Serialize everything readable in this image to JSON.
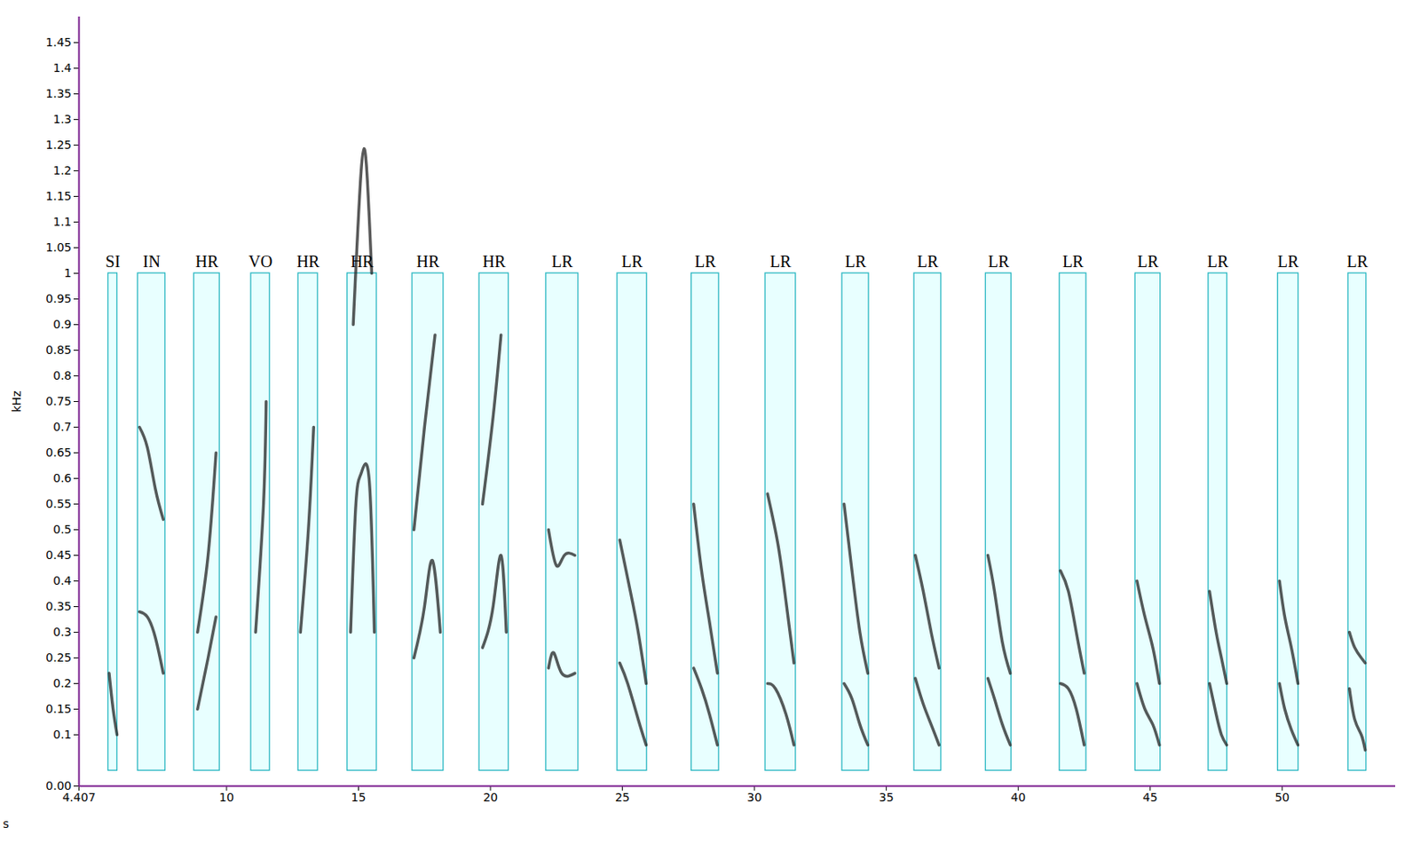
{
  "chart_data": {
    "type": "spectrogram",
    "x_label": "s",
    "y_label": "kHz",
    "xlim": [
      4.407,
      54.3
    ],
    "ylim": [
      0,
      1.5
    ],
    "xticks": [
      4.407,
      10,
      15,
      20,
      25,
      30,
      35,
      40,
      45,
      50
    ],
    "yticks": [
      {
        "value": 0,
        "label": "0.00"
      },
      0.1,
      0.15,
      0.2,
      0.25,
      0.3,
      0.35,
      0.4,
      0.45,
      0.5,
      0.55,
      0.6,
      0.65,
      0.7,
      0.75,
      0.8,
      0.85,
      0.9,
      0.95,
      1,
      1.05,
      1.1,
      1.15,
      1.2,
      1.25,
      1.3,
      1.35,
      1.4,
      1.45
    ],
    "annotations": [
      {
        "label": "SI",
        "t_start": 5.52,
        "t_end": 5.86,
        "f_low": 0.03,
        "f_high": 1.0,
        "contours": [
          [
            [
              5.55,
              0.22
            ],
            [
              5.7,
              0.15
            ],
            [
              5.85,
              0.1
            ]
          ]
        ]
      },
      {
        "label": "IN",
        "t_start": 6.64,
        "t_end": 7.68,
        "f_low": 0.03,
        "f_high": 1.0,
        "contours": [
          [
            [
              6.7,
              0.34
            ],
            [
              7.0,
              0.33
            ],
            [
              7.3,
              0.29
            ],
            [
              7.6,
              0.22
            ]
          ],
          [
            [
              6.7,
              0.7
            ],
            [
              7.0,
              0.66
            ],
            [
              7.3,
              0.58
            ],
            [
              7.6,
              0.52
            ]
          ]
        ]
      },
      {
        "label": "HR",
        "t_start": 8.77,
        "t_end": 9.74,
        "f_low": 0.03,
        "f_high": 1.0,
        "contours": [
          [
            [
              8.9,
              0.15
            ],
            [
              9.3,
              0.25
            ],
            [
              9.6,
              0.33
            ]
          ],
          [
            [
              8.9,
              0.3
            ],
            [
              9.3,
              0.45
            ],
            [
              9.6,
              0.65
            ]
          ]
        ]
      },
      {
        "label": "VO",
        "t_start": 10.93,
        "t_end": 11.64,
        "f_low": 0.03,
        "f_high": 1.0,
        "contours": [
          [
            [
              11.1,
              0.3
            ],
            [
              11.4,
              0.55
            ],
            [
              11.5,
              0.75
            ]
          ]
        ]
      },
      {
        "label": "HR",
        "t_start": 12.72,
        "t_end": 13.46,
        "f_low": 0.03,
        "f_high": 1.0,
        "contours": [
          [
            [
              12.8,
              0.3
            ],
            [
              13.1,
              0.5
            ],
            [
              13.3,
              0.7
            ]
          ]
        ]
      },
      {
        "label": "HR",
        "t_start": 14.58,
        "t_end": 15.69,
        "f_low": 0.03,
        "f_high": 1.0,
        "contours": [
          [
            [
              14.7,
              0.3
            ],
            [
              14.9,
              0.55
            ],
            [
              15.1,
              0.61
            ],
            [
              15.4,
              0.6
            ],
            [
              15.6,
              0.3
            ]
          ],
          [
            [
              14.8,
              0.9
            ],
            [
              15.1,
              1.2
            ],
            [
              15.3,
              1.21
            ],
            [
              15.5,
              1.0
            ]
          ]
        ]
      },
      {
        "label": "HR",
        "t_start": 17.04,
        "t_end": 18.22,
        "f_low": 0.03,
        "f_high": 1.0,
        "contours": [
          [
            [
              17.1,
              0.25
            ],
            [
              17.5,
              0.35
            ],
            [
              17.8,
              0.44
            ],
            [
              18.1,
              0.3
            ]
          ],
          [
            [
              17.1,
              0.5
            ],
            [
              17.5,
              0.7
            ],
            [
              17.9,
              0.88
            ]
          ]
        ]
      },
      {
        "label": "HR",
        "t_start": 19.58,
        "t_end": 20.69,
        "f_low": 0.03,
        "f_high": 1.0,
        "contours": [
          [
            [
              19.7,
              0.27
            ],
            [
              20.1,
              0.35
            ],
            [
              20.4,
              0.45
            ],
            [
              20.6,
              0.3
            ]
          ],
          [
            [
              19.7,
              0.55
            ],
            [
              20.1,
              0.72
            ],
            [
              20.4,
              0.88
            ]
          ]
        ]
      },
      {
        "label": "LR",
        "t_start": 22.11,
        "t_end": 23.33,
        "f_low": 0.03,
        "f_high": 1.0,
        "contours": [
          [
            [
              22.2,
              0.23
            ],
            [
              22.4,
              0.26
            ],
            [
              22.7,
              0.22
            ],
            [
              23.2,
              0.22
            ]
          ],
          [
            [
              22.2,
              0.5
            ],
            [
              22.5,
              0.43
            ],
            [
              22.8,
              0.45
            ],
            [
              23.2,
              0.45
            ]
          ]
        ]
      },
      {
        "label": "LR",
        "t_start": 24.81,
        "t_end": 25.93,
        "f_low": 0.03,
        "f_high": 1.0,
        "contours": [
          [
            [
              24.9,
              0.24
            ],
            [
              25.2,
              0.2
            ],
            [
              25.6,
              0.13
            ],
            [
              25.9,
              0.08
            ]
          ],
          [
            [
              24.9,
              0.48
            ],
            [
              25.3,
              0.38
            ],
            [
              25.6,
              0.3
            ],
            [
              25.9,
              0.2
            ]
          ]
        ]
      },
      {
        "label": "LR",
        "t_start": 27.62,
        "t_end": 28.66,
        "f_low": 0.03,
        "f_high": 1.0,
        "contours": [
          [
            [
              27.7,
              0.23
            ],
            [
              28.0,
              0.19
            ],
            [
              28.3,
              0.14
            ],
            [
              28.6,
              0.08
            ]
          ],
          [
            [
              27.7,
              0.55
            ],
            [
              28.0,
              0.42
            ],
            [
              28.3,
              0.32
            ],
            [
              28.6,
              0.22
            ]
          ]
        ]
      },
      {
        "label": "LR",
        "t_start": 30.42,
        "t_end": 31.57,
        "f_low": 0.03,
        "f_high": 1.0,
        "contours": [
          [
            [
              30.5,
              0.2
            ],
            [
              30.8,
              0.19
            ],
            [
              31.2,
              0.14
            ],
            [
              31.5,
              0.08
            ]
          ],
          [
            [
              30.5,
              0.57
            ],
            [
              30.9,
              0.47
            ],
            [
              31.2,
              0.36
            ],
            [
              31.5,
              0.24
            ]
          ]
        ]
      },
      {
        "label": "LR",
        "t_start": 33.33,
        "t_end": 34.34,
        "f_low": 0.03,
        "f_high": 1.0,
        "contours": [
          [
            [
              33.4,
              0.2
            ],
            [
              33.7,
              0.17
            ],
            [
              34.0,
              0.12
            ],
            [
              34.3,
              0.08
            ]
          ],
          [
            [
              33.4,
              0.55
            ],
            [
              33.7,
              0.42
            ],
            [
              34.0,
              0.3
            ],
            [
              34.3,
              0.22
            ]
          ]
        ]
      },
      {
        "label": "LR",
        "t_start": 36.06,
        "t_end": 37.08,
        "f_low": 0.03,
        "f_high": 1.0,
        "contours": [
          [
            [
              36.1,
              0.21
            ],
            [
              36.4,
              0.16
            ],
            [
              36.7,
              0.12
            ],
            [
              37.0,
              0.08
            ]
          ],
          [
            [
              36.1,
              0.45
            ],
            [
              36.4,
              0.38
            ],
            [
              36.7,
              0.3
            ],
            [
              37.0,
              0.23
            ]
          ]
        ]
      },
      {
        "label": "LR",
        "t_start": 38.77,
        "t_end": 39.74,
        "f_low": 0.03,
        "f_high": 1.0,
        "contours": [
          [
            [
              38.85,
              0.21
            ],
            [
              39.1,
              0.17
            ],
            [
              39.4,
              0.12
            ],
            [
              39.7,
              0.08
            ]
          ],
          [
            [
              38.85,
              0.45
            ],
            [
              39.1,
              0.38
            ],
            [
              39.4,
              0.28
            ],
            [
              39.7,
              0.22
            ]
          ]
        ]
      },
      {
        "label": "LR",
        "t_start": 41.57,
        "t_end": 42.58,
        "f_low": 0.03,
        "f_high": 1.0,
        "contours": [
          [
            [
              41.6,
              0.2
            ],
            [
              41.9,
              0.19
            ],
            [
              42.2,
              0.15
            ],
            [
              42.5,
              0.08
            ]
          ],
          [
            [
              41.6,
              0.42
            ],
            [
              41.9,
              0.38
            ],
            [
              42.2,
              0.3
            ],
            [
              42.5,
              0.22
            ]
          ]
        ]
      },
      {
        "label": "LR",
        "t_start": 44.44,
        "t_end": 45.39,
        "f_low": 0.03,
        "f_high": 1.0,
        "contours": [
          [
            [
              44.5,
              0.2
            ],
            [
              44.8,
              0.15
            ],
            [
              45.1,
              0.12
            ],
            [
              45.35,
              0.08
            ]
          ],
          [
            [
              44.5,
              0.4
            ],
            [
              44.8,
              0.33
            ],
            [
              45.1,
              0.27
            ],
            [
              45.35,
              0.2
            ]
          ]
        ]
      },
      {
        "label": "LR",
        "t_start": 47.21,
        "t_end": 47.92,
        "f_low": 0.03,
        "f_high": 1.0,
        "contours": [
          [
            [
              47.25,
              0.2
            ],
            [
              47.5,
              0.14
            ],
            [
              47.7,
              0.1
            ],
            [
              47.9,
              0.08
            ]
          ],
          [
            [
              47.25,
              0.38
            ],
            [
              47.5,
              0.3
            ],
            [
              47.7,
              0.25
            ],
            [
              47.9,
              0.2
            ]
          ]
        ]
      },
      {
        "label": "LR",
        "t_start": 49.84,
        "t_end": 50.62,
        "f_low": 0.03,
        "f_high": 1.0,
        "contours": [
          [
            [
              49.9,
              0.2
            ],
            [
              50.1,
              0.15
            ],
            [
              50.35,
              0.11
            ],
            [
              50.6,
              0.08
            ]
          ],
          [
            [
              49.9,
              0.4
            ],
            [
              50.1,
              0.33
            ],
            [
              50.35,
              0.27
            ],
            [
              50.6,
              0.2
            ]
          ]
        ]
      },
      {
        "label": "LR",
        "t_start": 52.51,
        "t_end": 53.19,
        "f_low": 0.03,
        "f_high": 1.0,
        "contours": [
          [
            [
              52.55,
              0.19
            ],
            [
              52.75,
              0.13
            ],
            [
              53.0,
              0.1
            ],
            [
              53.15,
              0.07
            ]
          ],
          [
            [
              52.55,
              0.3
            ],
            [
              52.75,
              0.27
            ],
            [
              53.0,
              0.25
            ],
            [
              53.15,
              0.24
            ]
          ]
        ]
      }
    ]
  }
}
